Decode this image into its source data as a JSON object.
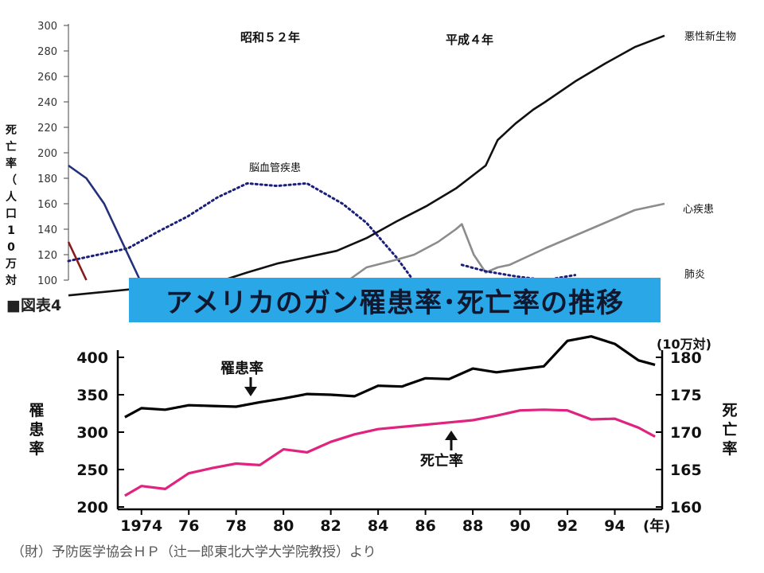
{
  "chart_data": [
    {
      "type": "line",
      "ylabel": "死亡率（人口10万対",
      "ylim": [
        100,
        300
      ],
      "yticks": [
        100,
        120,
        140,
        160,
        180,
        200,
        220,
        240,
        260,
        280,
        300
      ],
      "xlim": [
        0,
        100
      ],
      "annotations": [
        "昭和５２年",
        "平成４年"
      ],
      "series": [
        {
          "name": "悪性新生物",
          "color": "#111111",
          "style": "solid",
          "x": [
            0,
            26,
            30,
            35,
            40,
            45,
            50,
            55,
            60,
            65,
            70,
            72,
            75,
            78,
            80,
            85,
            90,
            95,
            100
          ],
          "y": [
            88,
            100,
            106,
            113,
            118,
            123,
            133,
            146,
            158,
            172,
            190,
            210,
            223,
            234,
            240,
            256,
            270,
            283,
            292
          ]
        },
        {
          "name": "脳血管疾患",
          "color": "#1a1f7a",
          "style": "dotted",
          "x": [
            0,
            5,
            10,
            15,
            20,
            25,
            30,
            35,
            40,
            43,
            46,
            50,
            55,
            58
          ],
          "y": [
            115,
            120,
            125,
            138,
            150,
            165,
            176,
            174,
            176,
            168,
            160,
            145,
            118,
            99
          ]
        },
        {
          "name": "心疾患",
          "color": "#8c8c8c",
          "style": "solid",
          "x": [
            47,
            50,
            55,
            58,
            62,
            65,
            66,
            68,
            70,
            72,
            74,
            80,
            85,
            90,
            95,
            100
          ],
          "y": [
            100,
            110,
            116,
            120,
            130,
            140,
            144,
            120,
            106,
            110,
            112,
            125,
            135,
            145,
            155,
            160
          ]
        },
        {
          "name": "肺炎",
          "color": "#1a1f7a",
          "style": "dotted",
          "x": [
            66,
            70,
            75,
            80,
            85
          ],
          "y": [
            112,
            107,
            103,
            100,
            104
          ]
        },
        {
          "name": "",
          "color": "#23307a",
          "style": "solid",
          "x": [
            0,
            3,
            6,
            9,
            12
          ],
          "y": [
            190,
            180,
            160,
            130,
            100
          ]
        },
        {
          "name": "",
          "color": "#8a1a1a",
          "style": "solid",
          "x": [
            0,
            1,
            2,
            3
          ],
          "y": [
            130,
            120,
            110,
            100
          ]
        }
      ]
    },
    {
      "type": "line",
      "xlabel": "(年)",
      "ylabel": "罹患率",
      "ylabel_right": "死亡率",
      "right_unit": "(10万対)",
      "ylim": [
        200,
        400
      ],
      "ylim_right": [
        160,
        180
      ],
      "yticks": [
        200,
        250,
        300,
        350,
        400
      ],
      "yticks_right": [
        160,
        165,
        170,
        175,
        180
      ],
      "xlim": [
        1973,
        1996
      ],
      "xticks": [
        1974,
        1976,
        1978,
        1980,
        1982,
        1984,
        1986,
        1988,
        1990,
        1992,
        1994
      ],
      "xticklabels": [
        "1974",
        "76",
        "78",
        "80",
        "82",
        "84",
        "86",
        "88",
        "90",
        "92",
        "94"
      ],
      "annotations": [
        "罹患率",
        "死亡率"
      ],
      "series": [
        {
          "name": "罹患率",
          "axis": "left",
          "color": "#000000",
          "x": [
            1973.3,
            1974,
            1975,
            1976,
            1977,
            1978,
            1979,
            1980,
            1981,
            1982,
            1983,
            1984,
            1985,
            1986,
            1987,
            1988,
            1989,
            1990,
            1991,
            1992,
            1993,
            1994,
            1995,
            1995.7
          ],
          "y": [
            320,
            332,
            330,
            336,
            335,
            334,
            340,
            345,
            351,
            350,
            348,
            362,
            361,
            372,
            371,
            385,
            380,
            384,
            388,
            422,
            428,
            418,
            396,
            390
          ]
        },
        {
          "name": "死亡率",
          "axis": "right",
          "color": "#e0237f",
          "x": [
            1973.3,
            1974,
            1975,
            1976,
            1977,
            1978,
            1979,
            1980,
            1981,
            1982,
            1983,
            1984,
            1985,
            1986,
            1987,
            1988,
            1989,
            1990,
            1991,
            1992,
            1993,
            1994,
            1995,
            1995.7
          ],
          "y": [
            161.5,
            162.8,
            162.4,
            164.5,
            165.2,
            165.8,
            165.6,
            167.7,
            167.3,
            168.7,
            169.7,
            170.4,
            170.7,
            171.0,
            171.3,
            171.6,
            172.2,
            172.9,
            173.0,
            172.9,
            171.7,
            171.8,
            170.6,
            169.4
          ]
        }
      ]
    }
  ],
  "banner": "アメリカのガン罹患率･死亡率の推移",
  "figure_label": "■図表4",
  "source": "（財）予防医学協会ＨＰ（辻一郎東北大学大学院教授）より"
}
